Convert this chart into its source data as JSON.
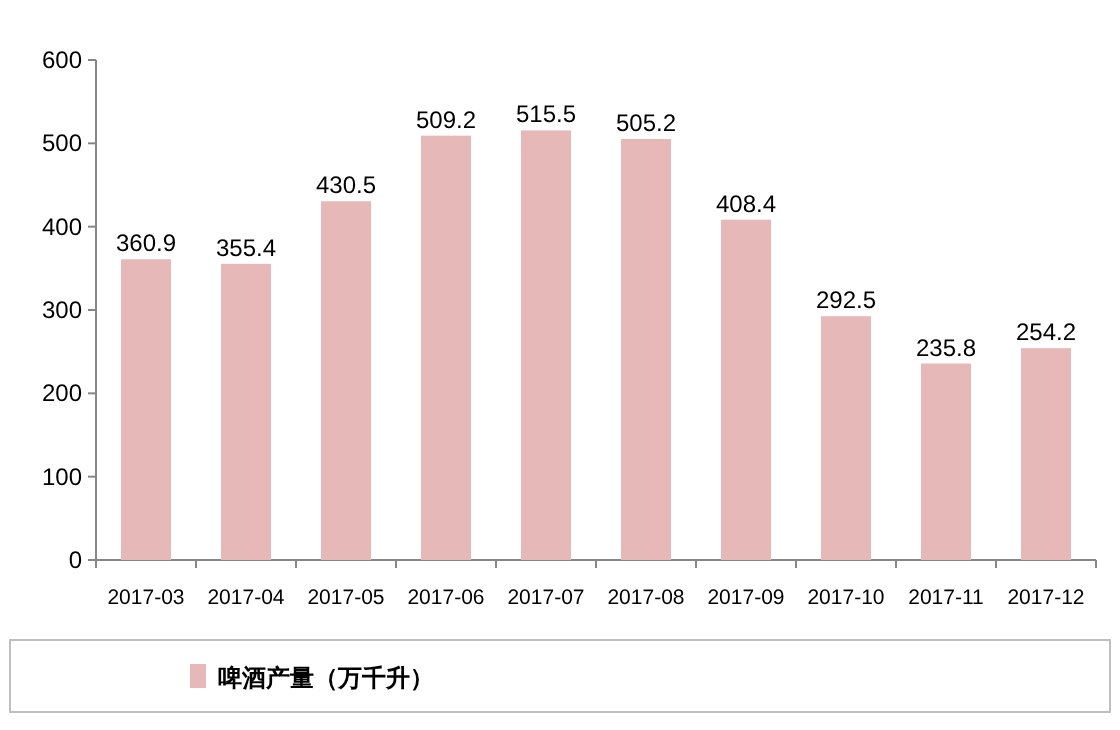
{
  "chart_data": {
    "type": "bar",
    "categories": [
      "2017-03",
      "2017-04",
      "2017-05",
      "2017-06",
      "2017-07",
      "2017-08",
      "2017-09",
      "2017-10",
      "2017-11",
      "2017-12"
    ],
    "series": [
      {
        "name": "啤酒产量（万千升）",
        "color": "#e6b8b7",
        "values": [
          360.9,
          355.4,
          430.5,
          509.2,
          515.5,
          505.2,
          408.4,
          292.5,
          235.8,
          254.2
        ]
      }
    ],
    "ylim": [
      0,
      600
    ],
    "yticks": [
      0,
      100,
      200,
      300,
      400,
      500,
      600
    ],
    "data_labels": true,
    "legend": "bottom",
    "grid": false
  }
}
